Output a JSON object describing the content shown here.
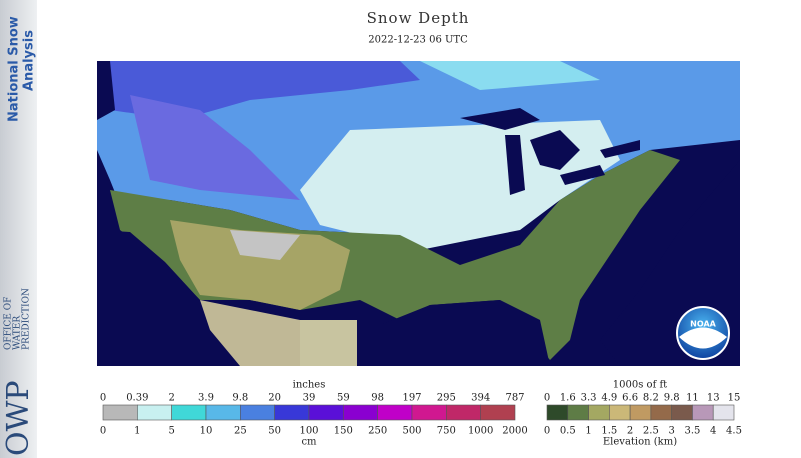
{
  "header": {
    "org_lines": [
      "National Snow",
      "Analysis"
    ],
    "title": "Snow Depth",
    "timestamp": "2022-12-23 06 UTC"
  },
  "footer_logo": {
    "acronym": "OWP",
    "lines": [
      "OFFICE OF",
      "WATER",
      "PREDICTION"
    ]
  },
  "map": {
    "logo": "NOAA"
  },
  "snow_legend": {
    "unit_top": "inches",
    "unit_bottom": "cm",
    "top_labels": [
      "0",
      "0.39",
      "2",
      "3.9",
      "9.8",
      "20",
      "39",
      "59",
      "98",
      "197",
      "295",
      "394",
      "787"
    ],
    "bottom_labels": [
      "0",
      "1",
      "5",
      "10",
      "25",
      "50",
      "100",
      "150",
      "250",
      "500",
      "750",
      "1000",
      "2000"
    ],
    "colors": [
      "#b8b8b8",
      "#c8f0f0",
      "#40d8d8",
      "#58b8e8",
      "#4a80e0",
      "#3838d8",
      "#5a10d8",
      "#8a00d0",
      "#c000c8",
      "#d01890",
      "#c02868",
      "#b04050"
    ]
  },
  "elevation_legend": {
    "title_top": "1000s of ft",
    "title_bottom": "Elevation (km)",
    "top_labels": [
      "0",
      "1.6",
      "3.3",
      "4.9",
      "6.6",
      "8.2",
      "9.8",
      "11",
      "13",
      "15"
    ],
    "bottom_labels": [
      "0",
      "0.5",
      "1",
      "1.5",
      "2",
      "2.5",
      "3",
      "3.5",
      "4",
      "4.5"
    ],
    "colors": [
      "#2e4a2a",
      "#5e7c46",
      "#a4a862",
      "#cbb878",
      "#c09a62",
      "#946a4a",
      "#7a5a4c",
      "#b898b8",
      "#e4e4ec"
    ]
  }
}
